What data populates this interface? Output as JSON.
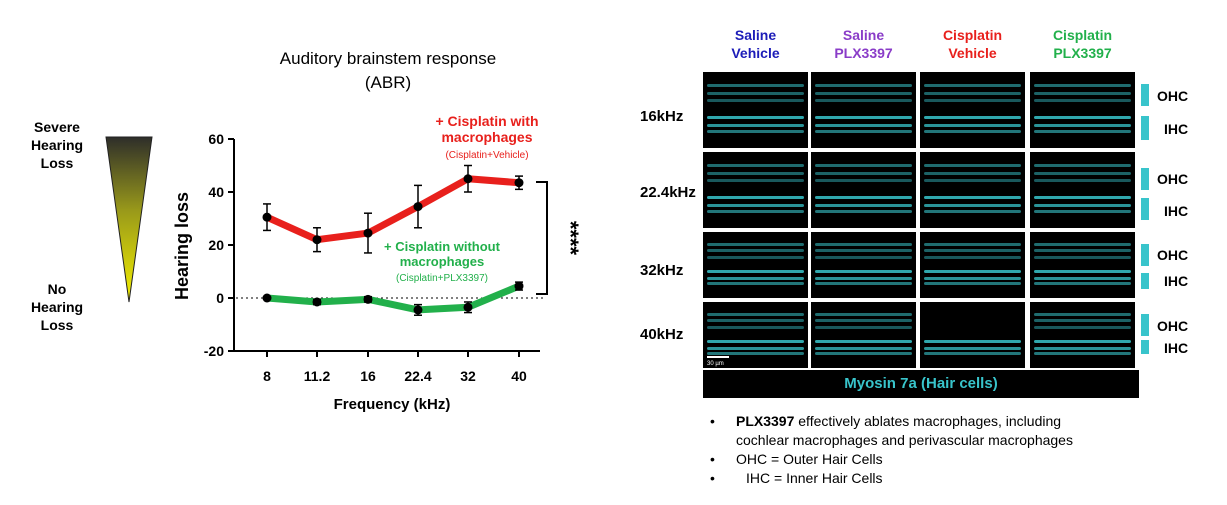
{
  "triangle": {
    "top_label_lines": [
      "Severe",
      "Hearing",
      "Loss"
    ],
    "bottom_label_lines": [
      "No",
      "Hearing",
      "Loss"
    ]
  },
  "chart_data": {
    "type": "line",
    "title_lines": [
      "Auditory brainstem response",
      "(ABR)"
    ],
    "xlabel": "Frequency (kHz)",
    "ylabel": "Hearing loss",
    "categories": [
      "8",
      "11.2",
      "16",
      "22.4",
      "32",
      "40"
    ],
    "ylim": [
      -20,
      60
    ],
    "yticks": [
      -20,
      0,
      20,
      40,
      60
    ],
    "reference_line": 0,
    "series": [
      {
        "name": "+ Cisplatin with macrophages",
        "sub_label": "(Cisplatin+Vehicle)",
        "color": "#e8201c",
        "values": [
          30.5,
          22,
          24.5,
          34.5,
          45,
          43.5
        ],
        "errors": [
          5,
          4.5,
          7.5,
          8,
          5,
          2.5
        ]
      },
      {
        "name": "+ Cisplatin without macrophages",
        "sub_label": "(Cisplatin+PLX3397)",
        "color": "#22b04b",
        "values": [
          0,
          -1.5,
          -0.5,
          -4.5,
          -3.5,
          4.5
        ],
        "errors": [
          0.5,
          1,
          1,
          2,
          2,
          1.5
        ]
      }
    ],
    "significance": "****"
  },
  "series_labels": {
    "red_lines": [
      "+ Cisplatin with",
      "macrophages"
    ],
    "red_sub": "(Cisplatin+Vehicle)",
    "green_lines": [
      "+ Cisplatin without",
      "macrophages"
    ],
    "green_sub": "(Cisplatin+PLX3397)"
  },
  "image_panel": {
    "conditions": [
      {
        "line1": "Saline",
        "line2": "Vehicle",
        "color1": "#1c1cb8",
        "color2": "#1c1cb8"
      },
      {
        "line1": "Saline",
        "line2": "PLX3397",
        "color1": "#8a3cc8",
        "color2": "#8a3cc8"
      },
      {
        "line1": "Cisplatin",
        "line2": "Vehicle",
        "color1": "#e8201c",
        "color2": "#e8201c"
      },
      {
        "line1": "Cisplatin",
        "line2": "PLX3397",
        "color1": "#22b04b",
        "color2": "#22b04b"
      }
    ],
    "frequencies": [
      "16kHz",
      "22.4kHz",
      "32kHz",
      "40kHz"
    ],
    "ohc_label": "OHC",
    "ihc_label": "IHC",
    "scale_bar": "30 µm",
    "stain_label": "Myosin 7a (Hair cells)",
    "cell_color": "#38c4cb"
  },
  "bullets": {
    "b1_bold": "PLX3397",
    "b1_rest": " effectively ablates macrophages, including",
    "b1_line2": "cochlear macrophages and perivascular macrophages",
    "b2": "OHC = Outer Hair Cells",
    "b3": "IHC = Inner Hair Cells",
    "dot": "•"
  }
}
